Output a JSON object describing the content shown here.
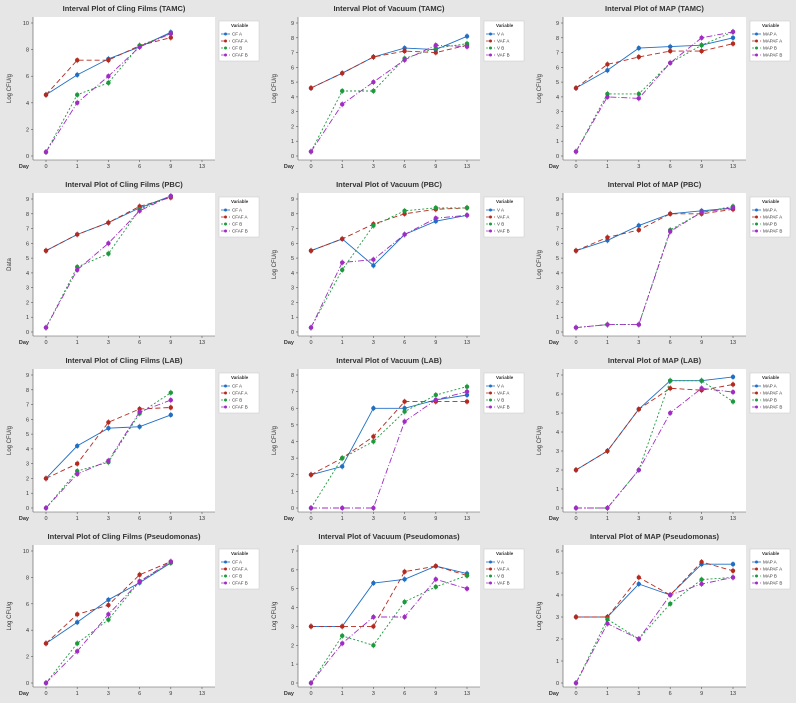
{
  "day_label": "Day",
  "legend_title": "Variable",
  "chart_data": [
    {
      "type": "line",
      "title": "Interval Plot of Cling Films (TAMC)",
      "ylabel": "Log CFU/g",
      "ylim": [
        0,
        10
      ],
      "yticks": [
        0,
        2,
        4,
        6,
        8,
        10
      ],
      "days": [
        0,
        1,
        3,
        6,
        9,
        13
      ],
      "series": [
        {
          "name": "CF A",
          "color": "#1f6fc5",
          "dash": "",
          "values": [
            4.6,
            6.1,
            7.3,
            8.2,
            9.3
          ]
        },
        {
          "name": "CFAF A",
          "color": "#b52a1e",
          "dash": "5,3",
          "values": [
            4.6,
            7.2,
            7.2,
            8.3,
            8.9
          ]
        },
        {
          "name": "CF B",
          "color": "#1d9a3c",
          "dash": "2,2",
          "values": [
            0.3,
            4.6,
            5.5,
            8.3,
            9.2
          ]
        },
        {
          "name": "CFAF B",
          "color": "#a12cc4",
          "dash": "6,2,1,2",
          "values": [
            0.3,
            4.0,
            6.0,
            8.2,
            9.2
          ]
        }
      ]
    },
    {
      "type": "line",
      "title": "Interval Plot of Vacuum (TAMC)",
      "ylabel": "Log CFU/g",
      "ylim": [
        0,
        9
      ],
      "yticks": [
        0,
        1,
        2,
        3,
        4,
        5,
        6,
        7,
        8,
        9
      ],
      "days": [
        0,
        1,
        3,
        6,
        9,
        13
      ],
      "series": [
        {
          "name": "V A",
          "color": "#1f6fc5",
          "dash": "",
          "values": [
            4.6,
            5.6,
            6.7,
            7.3,
            7.2,
            8.1
          ]
        },
        {
          "name": "VAF A",
          "color": "#b52a1e",
          "dash": "5,3",
          "values": [
            4.6,
            5.6,
            6.7,
            7.1,
            7.0,
            7.5
          ]
        },
        {
          "name": "V B",
          "color": "#1d9a3c",
          "dash": "2,2",
          "values": [
            0.3,
            4.4,
            4.4,
            6.6,
            7.3,
            7.6
          ]
        },
        {
          "name": "VAF B",
          "color": "#a12cc4",
          "dash": "6,2,1,2",
          "values": [
            0.3,
            3.5,
            5.0,
            6.5,
            7.5,
            7.4
          ]
        }
      ]
    },
    {
      "type": "line",
      "title": "Interval Plot of MAP (TAMC)",
      "ylabel": "Log CFU/g",
      "ylim": [
        0,
        9
      ],
      "yticks": [
        0,
        1,
        2,
        3,
        4,
        5,
        6,
        7,
        8,
        9
      ],
      "days": [
        0,
        1,
        3,
        6,
        9,
        13
      ],
      "series": [
        {
          "name": "MAP A",
          "color": "#1f6fc5",
          "dash": "",
          "values": [
            4.6,
            5.8,
            7.3,
            7.4,
            7.5,
            8.0
          ]
        },
        {
          "name": "MAPAF A",
          "color": "#b52a1e",
          "dash": "5,3",
          "values": [
            4.6,
            6.2,
            6.7,
            7.1,
            7.1,
            7.6
          ]
        },
        {
          "name": "MAP B",
          "color": "#1d9a3c",
          "dash": "2,2",
          "values": [
            0.3,
            4.2,
            4.2,
            6.3,
            7.5,
            8.4
          ]
        },
        {
          "name": "MAPAF B",
          "color": "#a12cc4",
          "dash": "6,2,1,2",
          "values": [
            0.3,
            4.0,
            3.9,
            6.3,
            8.0,
            8.4
          ]
        }
      ]
    },
    {
      "type": "line",
      "title": "Interval Plot of Cling Films (PBC)",
      "ylabel": "Data",
      "ylim": [
        0,
        9
      ],
      "yticks": [
        0,
        1,
        2,
        3,
        4,
        5,
        6,
        7,
        8,
        9
      ],
      "days": [
        0,
        1,
        3,
        6,
        9,
        13
      ],
      "series": [
        {
          "name": "CF A",
          "color": "#1f6fc5",
          "dash": "",
          "values": [
            5.5,
            6.6,
            7.4,
            8.4,
            9.2
          ]
        },
        {
          "name": "CFAF A",
          "color": "#b52a1e",
          "dash": "5,3",
          "values": [
            5.5,
            6.6,
            7.4,
            8.5,
            9.1
          ]
        },
        {
          "name": "CF B",
          "color": "#1d9a3c",
          "dash": "2,2",
          "values": [
            0.3,
            4.4,
            5.3,
            8.3,
            9.2
          ]
        },
        {
          "name": "CFAF B",
          "color": "#a12cc4",
          "dash": "6,2,1,2",
          "values": [
            0.3,
            4.2,
            6.0,
            8.2,
            9.2
          ]
        }
      ]
    },
    {
      "type": "line",
      "title": "Interval Plot of Vacuum (PBC)",
      "ylabel": "Log CFU/g",
      "ylim": [
        0,
        9
      ],
      "yticks": [
        0,
        1,
        2,
        3,
        4,
        5,
        6,
        7,
        8,
        9
      ],
      "days": [
        0,
        1,
        3,
        6,
        9,
        13
      ],
      "series": [
        {
          "name": "V A",
          "color": "#1f6fc5",
          "dash": "",
          "values": [
            5.5,
            6.3,
            4.5,
            6.6,
            7.5,
            7.9
          ]
        },
        {
          "name": "VAF A",
          "color": "#b52a1e",
          "dash": "5,3",
          "values": [
            5.5,
            6.3,
            7.3,
            8.0,
            8.3,
            8.4
          ]
        },
        {
          "name": "V B",
          "color": "#1d9a3c",
          "dash": "2,2",
          "values": [
            0.3,
            4.2,
            7.2,
            8.2,
            8.4,
            8.4
          ]
        },
        {
          "name": "VAF B",
          "color": "#a12cc4",
          "dash": "6,2,1,2",
          "values": [
            0.3,
            4.7,
            4.9,
            6.6,
            7.7,
            7.9
          ]
        }
      ]
    },
    {
      "type": "line",
      "title": "Interval Plot of MAP (PBC)",
      "ylabel": "Log CFU/g",
      "ylim": [
        0,
        9
      ],
      "yticks": [
        0,
        1,
        2,
        3,
        4,
        5,
        6,
        7,
        8,
        9
      ],
      "days": [
        0,
        1,
        3,
        6,
        9,
        13
      ],
      "series": [
        {
          "name": "MAP A",
          "color": "#1f6fc5",
          "dash": "",
          "values": [
            5.5,
            6.2,
            7.2,
            8.0,
            8.2,
            8.4
          ]
        },
        {
          "name": "MAPAF A",
          "color": "#b52a1e",
          "dash": "5,3",
          "values": [
            5.5,
            6.4,
            6.9,
            8.0,
            8.0,
            8.3
          ]
        },
        {
          "name": "MAP B",
          "color": "#1d9a3c",
          "dash": "2,2",
          "values": [
            0.3,
            0.5,
            0.5,
            6.9,
            8.1,
            8.5
          ]
        },
        {
          "name": "MAPAF B",
          "color": "#a12cc4",
          "dash": "6,2,1,2",
          "values": [
            0.3,
            0.5,
            0.5,
            6.8,
            8.1,
            8.4
          ]
        }
      ]
    },
    {
      "type": "line",
      "title": "Interval Plot of Cling Films (LAB)",
      "ylabel": "Log CFU/g",
      "ylim": [
        0,
        9
      ],
      "yticks": [
        0,
        1,
        2,
        3,
        4,
        5,
        6,
        7,
        8,
        9
      ],
      "days": [
        0,
        1,
        3,
        6,
        9,
        13
      ],
      "series": [
        {
          "name": "CF A",
          "color": "#1f6fc5",
          "dash": "",
          "values": [
            2.0,
            4.2,
            5.4,
            5.5,
            6.3
          ]
        },
        {
          "name": "CFAF A",
          "color": "#b52a1e",
          "dash": "5,3",
          "values": [
            2.0,
            3.0,
            5.8,
            6.7,
            6.8
          ]
        },
        {
          "name": "CF B",
          "color": "#1d9a3c",
          "dash": "2,2",
          "values": [
            0.0,
            2.5,
            3.1,
            6.4,
            7.8
          ]
        },
        {
          "name": "CFAF B",
          "color": "#a12cc4",
          "dash": "6,2,1,2",
          "values": [
            0.0,
            2.3,
            3.2,
            6.5,
            7.3
          ]
        }
      ]
    },
    {
      "type": "line",
      "title": "Interval Plot of Vacuum (LAB)",
      "ylabel": "Log CFU/g",
      "ylim": [
        0,
        8
      ],
      "yticks": [
        0,
        1,
        2,
        3,
        4,
        5,
        6,
        7,
        8
      ],
      "days": [
        0,
        1,
        3,
        6,
        9,
        13
      ],
      "series": [
        {
          "name": "V A",
          "color": "#1f6fc5",
          "dash": "",
          "values": [
            2.0,
            2.5,
            6.0,
            6.0,
            6.5,
            6.8
          ]
        },
        {
          "name": "VAF A",
          "color": "#b52a1e",
          "dash": "5,3",
          "values": [
            2.0,
            3.0,
            4.3,
            6.4,
            6.4,
            6.4
          ]
        },
        {
          "name": "V B",
          "color": "#1d9a3c",
          "dash": "2,2",
          "values": [
            0.0,
            3.0,
            4.0,
            5.8,
            6.8,
            7.3
          ]
        },
        {
          "name": "VAF B",
          "color": "#a12cc4",
          "dash": "6,2,1,2",
          "values": [
            0.0,
            0.0,
            0.0,
            5.2,
            6.5,
            7.0
          ]
        }
      ]
    },
    {
      "type": "line",
      "title": "Interval Plot of MAP (LAB)",
      "ylabel": "Log CFU/g",
      "ylim": [
        0,
        7
      ],
      "yticks": [
        0,
        1,
        2,
        3,
        4,
        5,
        6,
        7
      ],
      "days": [
        0,
        1,
        3,
        6,
        9,
        13
      ],
      "series": [
        {
          "name": "MAP A",
          "color": "#1f6fc5",
          "dash": "",
          "values": [
            2.0,
            3.0,
            5.2,
            6.7,
            6.7,
            6.9
          ]
        },
        {
          "name": "MAPAF A",
          "color": "#b52a1e",
          "dash": "5,3",
          "values": [
            2.0,
            3.0,
            5.2,
            6.3,
            6.2,
            6.5
          ]
        },
        {
          "name": "MAP B",
          "color": "#1d9a3c",
          "dash": "2,2",
          "values": [
            0.0,
            0.0,
            2.0,
            6.7,
            6.7,
            5.6
          ]
        },
        {
          "name": "MAPAF B",
          "color": "#a12cc4",
          "dash": "6,2,1,2",
          "values": [
            0.0,
            0.0,
            2.0,
            5.0,
            6.3,
            6.1
          ]
        }
      ]
    },
    {
      "type": "line",
      "title": "Interval Plot of Cling Films (Pseudomonas)",
      "ylabel": "Log CFU/g",
      "ylim": [
        0,
        10
      ],
      "yticks": [
        0,
        2,
        4,
        6,
        8,
        10
      ],
      "days": [
        0,
        1,
        3,
        6,
        9,
        13
      ],
      "series": [
        {
          "name": "CF A",
          "color": "#1f6fc5",
          "dash": "",
          "values": [
            3.0,
            4.6,
            6.3,
            7.6,
            9.1
          ]
        },
        {
          "name": "CFAF A",
          "color": "#b52a1e",
          "dash": "5,3",
          "values": [
            3.0,
            5.2,
            5.9,
            8.2,
            9.2
          ]
        },
        {
          "name": "CF B",
          "color": "#1d9a3c",
          "dash": "2,2",
          "values": [
            0.0,
            3.0,
            4.8,
            7.7,
            9.1
          ]
        },
        {
          "name": "CFAF B",
          "color": "#a12cc4",
          "dash": "6,2,1,2",
          "values": [
            0.0,
            2.4,
            5.2,
            7.7,
            9.2
          ]
        }
      ]
    },
    {
      "type": "line",
      "title": "Interval Plot of Vacuum (Pseudomonas)",
      "ylabel": "Log CFU/g",
      "ylim": [
        0,
        7
      ],
      "yticks": [
        0,
        1,
        2,
        3,
        4,
        5,
        6,
        7
      ],
      "days": [
        0,
        1,
        3,
        6,
        9,
        13
      ],
      "series": [
        {
          "name": "V A",
          "color": "#1f6fc5",
          "dash": "",
          "values": [
            3.0,
            3.0,
            5.3,
            5.5,
            6.2,
            5.8
          ]
        },
        {
          "name": "VAF A",
          "color": "#b52a1e",
          "dash": "5,3",
          "values": [
            3.0,
            3.0,
            3.0,
            5.9,
            6.2,
            5.7
          ]
        },
        {
          "name": "V B",
          "color": "#1d9a3c",
          "dash": "2,2",
          "values": [
            0.0,
            2.5,
            2.0,
            4.3,
            5.1,
            5.7
          ]
        },
        {
          "name": "VAF B",
          "color": "#a12cc4",
          "dash": "6,2,1,2",
          "values": [
            0.0,
            2.1,
            3.5,
            3.5,
            5.5,
            5.0
          ]
        }
      ]
    },
    {
      "type": "line",
      "title": "Interval Plot of MAP (Pseudomonas)",
      "ylabel": "Log CFU/g",
      "ylim": [
        0,
        6
      ],
      "yticks": [
        0,
        1,
        2,
        3,
        4,
        5,
        6
      ],
      "days": [
        0,
        1,
        3,
        6,
        9,
        13
      ],
      "series": [
        {
          "name": "MAP A",
          "color": "#1f6fc5",
          "dash": "",
          "values": [
            3.0,
            3.0,
            4.5,
            4.0,
            5.4,
            5.4
          ]
        },
        {
          "name": "MAPAF A",
          "color": "#b52a1e",
          "dash": "5,3",
          "values": [
            3.0,
            3.0,
            4.8,
            4.0,
            5.5,
            5.1
          ]
        },
        {
          "name": "MAP B",
          "color": "#1d9a3c",
          "dash": "2,2",
          "values": [
            0.0,
            2.9,
            2.0,
            3.6,
            4.7,
            4.8
          ]
        },
        {
          "name": "MAPAF B",
          "color": "#a12cc4",
          "dash": "6,2,1,2",
          "values": [
            0.0,
            2.7,
            2.0,
            4.0,
            4.5,
            4.8
          ]
        }
      ]
    }
  ]
}
